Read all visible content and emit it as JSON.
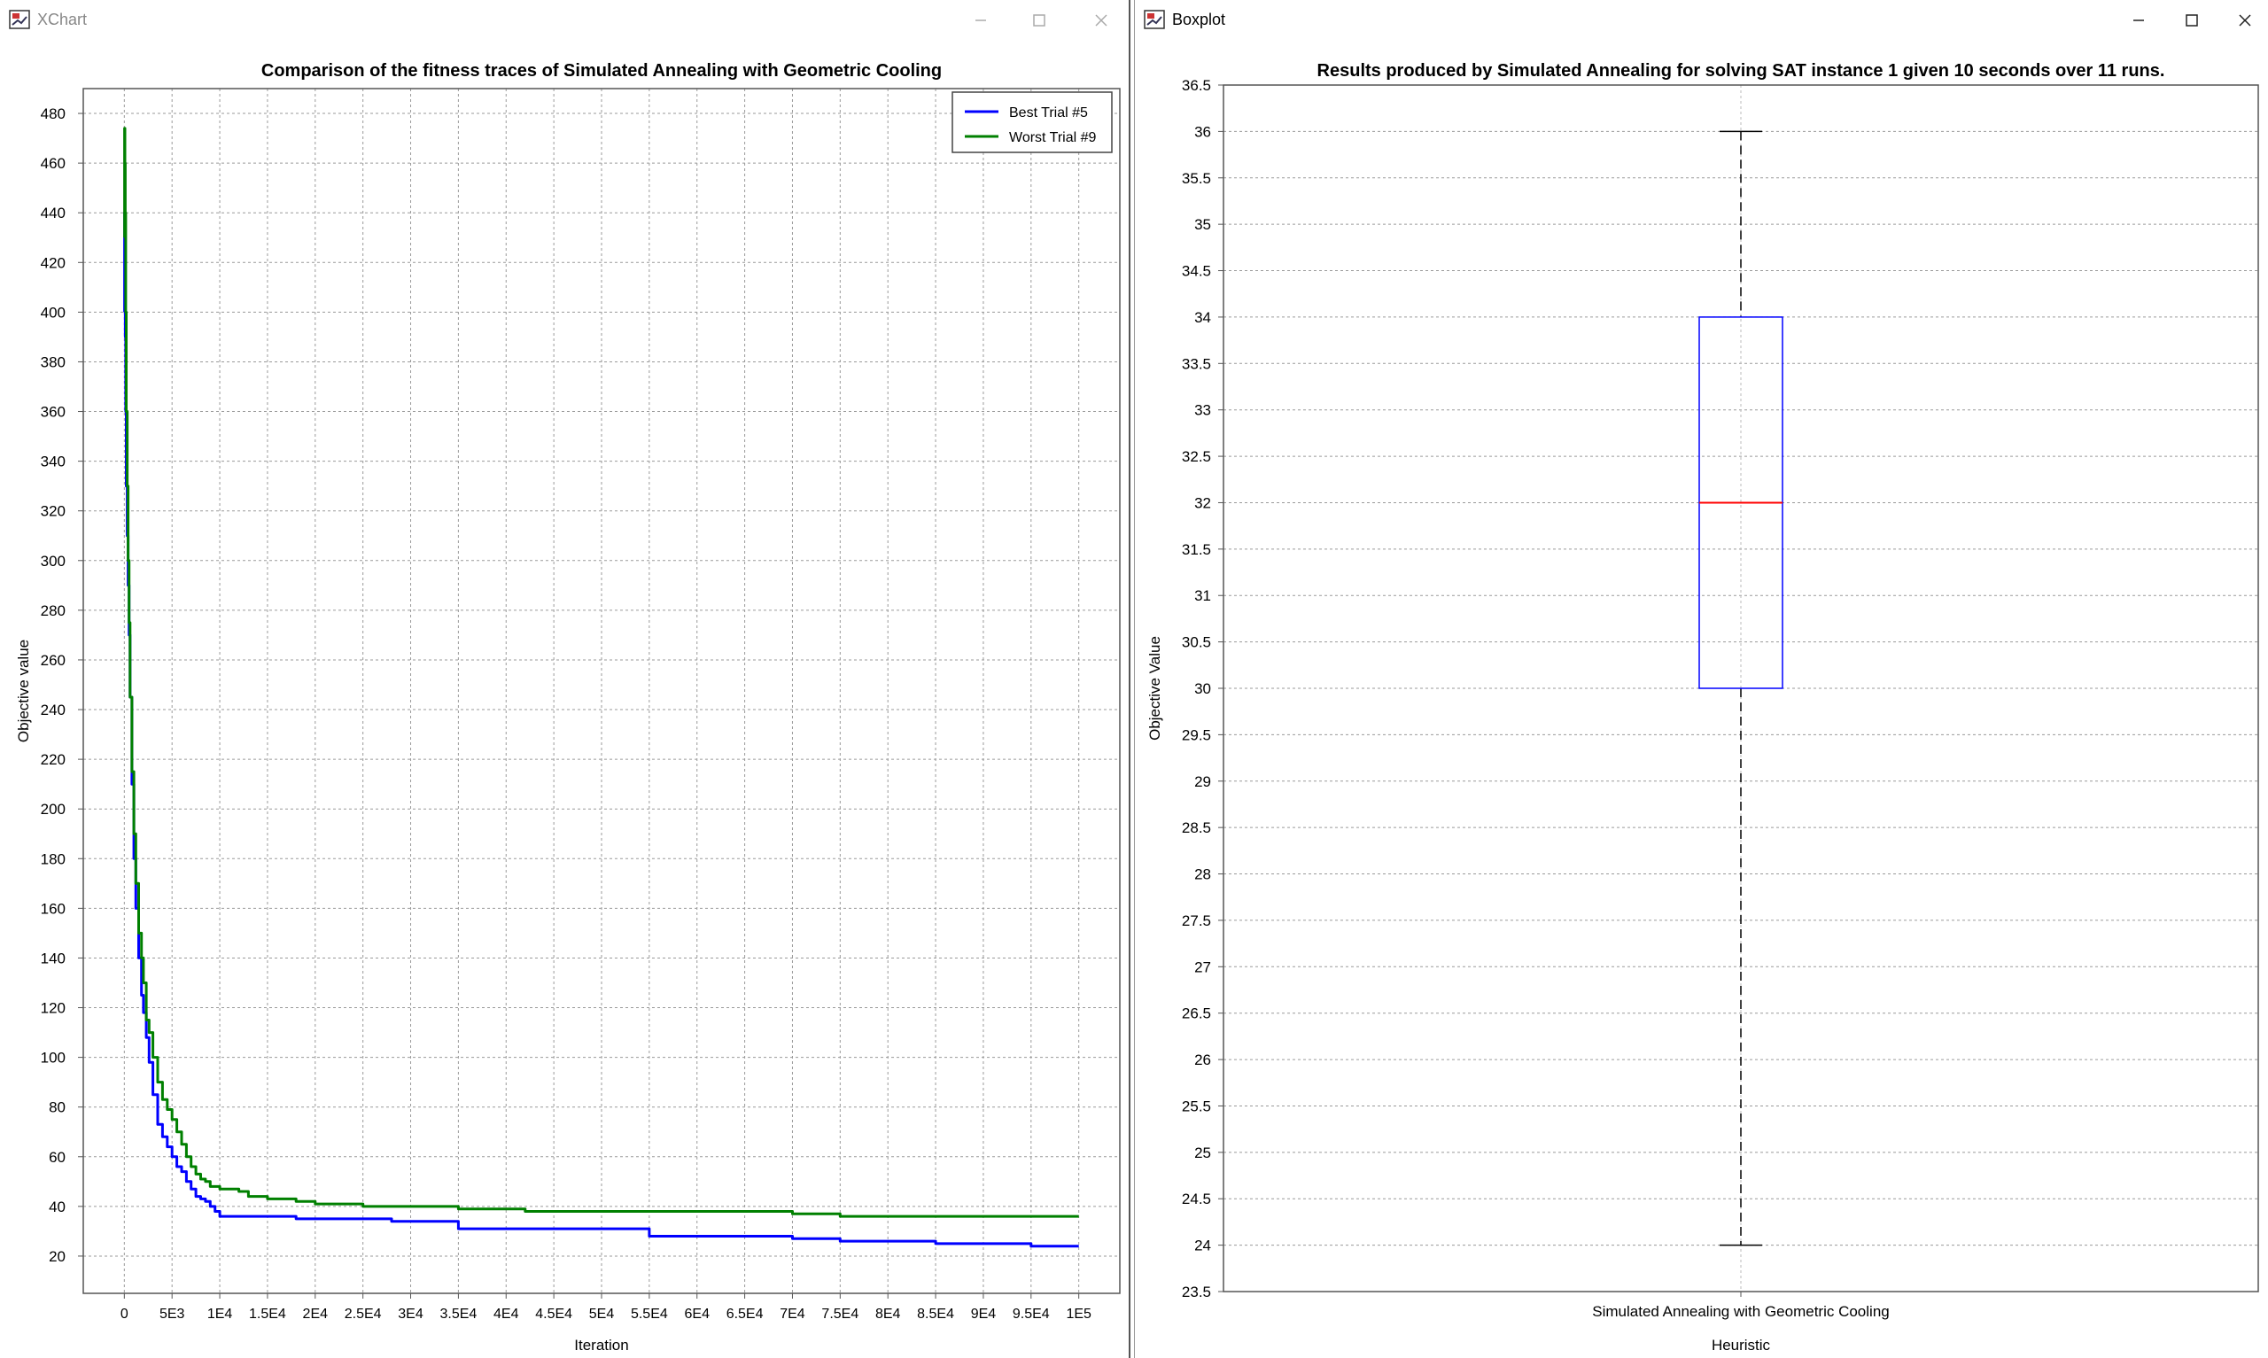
{
  "windows": [
    {
      "title": "XChart",
      "chart_data": {
        "type": "line",
        "title": "Comparison of the fitness traces of Simulated Annealing with Geometric Cooling",
        "xlabel": "Iteration",
        "ylabel": "Objective value",
        "xlim": [
          -4300,
          104300
        ],
        "ylim": [
          5,
          490
        ],
        "x_ticks": [
          0,
          5000,
          10000,
          15000,
          20000,
          25000,
          30000,
          35000,
          40000,
          45000,
          50000,
          55000,
          60000,
          65000,
          70000,
          75000,
          80000,
          85000,
          90000,
          95000,
          100000
        ],
        "x_tick_labels": [
          "0",
          "5E3",
          "1E4",
          "1.5E4",
          "2E4",
          "2.5E4",
          "3E4",
          "3.5E4",
          "4E4",
          "4.5E4",
          "5E4",
          "5.5E4",
          "6E4",
          "6.5E4",
          "7E4",
          "7.5E4",
          "8E4",
          "8.5E4",
          "9E4",
          "9.5E4",
          "1E5"
        ],
        "y_ticks": [
          20,
          40,
          60,
          80,
          100,
          120,
          140,
          160,
          180,
          200,
          220,
          240,
          260,
          280,
          300,
          320,
          340,
          360,
          380,
          400,
          420,
          440,
          460,
          480
        ],
        "grid": true,
        "legend_position": "top-right",
        "series": [
          {
            "name": "Best Trial #5",
            "color": "#0000ff",
            "x": [
              0,
              30,
              60,
              100,
              150,
              200,
              300,
              400,
              500,
              600,
              800,
              1000,
              1200,
              1500,
              1800,
              2000,
              2300,
              2600,
              3000,
              3500,
              4000,
              4500,
              5000,
              5500,
              6000,
              6500,
              7000,
              7500,
              8000,
              8500,
              9000,
              9500,
              10000,
              10500,
              12000,
              15000,
              18000,
              20000,
              25000,
              28000,
              30000,
              35000,
              45000,
              50000,
              55000,
              60000,
              65000,
              70000,
              75000,
              80000,
              85000,
              90000,
              95000,
              100000
            ],
            "y": [
              400,
              440,
              420,
              390,
              360,
              330,
              310,
              290,
              270,
              245,
              210,
              180,
              160,
              140,
              125,
              118,
              108,
              98,
              85,
              73,
              68,
              64,
              60,
              56,
              54,
              50,
              47,
              44,
              43,
              42,
              40,
              38,
              36,
              36,
              36,
              36,
              35,
              35,
              35,
              34,
              34,
              31,
              31,
              31,
              28,
              28,
              28,
              27,
              26,
              26,
              25,
              25,
              24,
              24
            ]
          },
          {
            "name": "Worst Trial #9",
            "color": "#008000",
            "x": [
              0,
              30,
              60,
              100,
              150,
              200,
              300,
              400,
              500,
              600,
              800,
              1000,
              1200,
              1500,
              1800,
              2000,
              2300,
              2600,
              3000,
              3500,
              4000,
              4500,
              5000,
              5500,
              6000,
              6500,
              7000,
              7500,
              8000,
              8500,
              9000,
              10000,
              11000,
              12000,
              13000,
              15000,
              18000,
              20000,
              25000,
              30000,
              35000,
              40000,
              42000,
              50000,
              60000,
              65000,
              70000,
              75000,
              80000,
              85000,
              90000,
              95000,
              100000
            ],
            "y": [
              430,
              474,
              460,
              440,
              400,
              360,
              330,
              300,
              275,
              245,
              215,
              190,
              170,
              150,
              140,
              130,
              115,
              110,
              100,
              90,
              83,
              79,
              75,
              70,
              65,
              60,
              56,
              53,
              51,
              50,
              48,
              47,
              47,
              46,
              44,
              43,
              42,
              41,
              40,
              40,
              39,
              39,
              38,
              38,
              38,
              38,
              37,
              36,
              36,
              36,
              36,
              36,
              36
            ]
          }
        ]
      }
    },
    {
      "title": "Boxplot",
      "chart_data": {
        "type": "box",
        "title": "Results produced by Simulated Annealing for solving SAT instance 1 given 10 seconds over 11 runs.",
        "xlabel": "Heuristic",
        "ylabel": "Objective Value",
        "categories": [
          "Simulated Annealing with Geometric Cooling"
        ],
        "ylim": [
          23.5,
          36.5
        ],
        "y_ticks": [
          23.5,
          24,
          24.5,
          25,
          25.5,
          26,
          26.5,
          27,
          27.5,
          28,
          28.5,
          29,
          29.5,
          30,
          30.5,
          31,
          31.5,
          32,
          32.5,
          33,
          33.5,
          34,
          34.5,
          35,
          35.5,
          36,
          36.5
        ],
        "grid": true,
        "boxes": [
          {
            "min": 24,
            "q1": 30,
            "median": 32,
            "q3": 34,
            "max": 36
          }
        ],
        "box_color": "#0000ff",
        "median_color": "#ff0000"
      }
    }
  ]
}
